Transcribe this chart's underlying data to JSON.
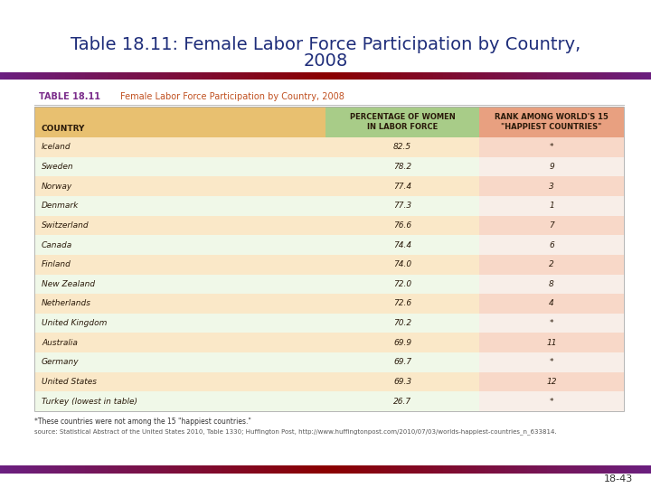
{
  "title_line1": "Table 18.11: Female Labor Force Participation by Country,",
  "title_line2": "2008",
  "title_color": "#1E2D7A",
  "title_fontsize": 14,
  "table_label": "TABLE 18.11",
  "table_subtitle": "Female Labor Force Participation by Country, 2008",
  "table_label_color": "#7B2D8B",
  "table_subtitle_color": "#C05020",
  "col_header0": "COUNTRY",
  "col_header1": "PERCENTAGE OF WOMEN\nIN LABOR FORCE",
  "col_header2": "RANK AMONG WORLD'S 15\n\"HAPPIEST COUNTRIES\"",
  "col_header_bg0": "#E8C070",
  "col_header_bg1": "#A8CC88",
  "col_header_bg2": "#E8A080",
  "col_header_text_color": "#2A1A0A",
  "countries": [
    "Iceland",
    "Sweden",
    "Norway",
    "Denmark",
    "Switzerland",
    "Canada",
    "Finland",
    "New Zealand",
    "Netherlands",
    "United Kingdom",
    "Australia",
    "Germany",
    "United States",
    "Turkey (lowest in table)"
  ],
  "percentages": [
    "82.5",
    "78.2",
    "77.4",
    "77.3",
    "76.6",
    "74.4",
    "74.0",
    "72.0",
    "72.6",
    "70.2",
    "69.9",
    "69.7",
    "69.3",
    "26.7"
  ],
  "ranks": [
    "*",
    "9",
    "3",
    "1",
    "7",
    "6",
    "2",
    "8",
    "4",
    "*",
    "11",
    "*",
    "12",
    "*"
  ],
  "row_bg_country_odd": "#FAE8C8",
  "row_bg_country_even": "#F0F8E8",
  "row_bg_rank_odd": "#F8D8C8",
  "row_bg_rank_even": "#F8EEE8",
  "footnote1": "*These countries were not among the 15 \"happiest countries.\"",
  "footnote2": "source: Statistical Abstract of the United States 2010, Table 1330; Huffington Post, http://www.huffingtonpost.com/2010/07/03/worlds-happiest-countries_n_633814.",
  "page_number": "18-43",
  "bar_purple": "#6B1F80",
  "bar_darkred": "#8B0000",
  "bg_color": "#FFFFFF"
}
